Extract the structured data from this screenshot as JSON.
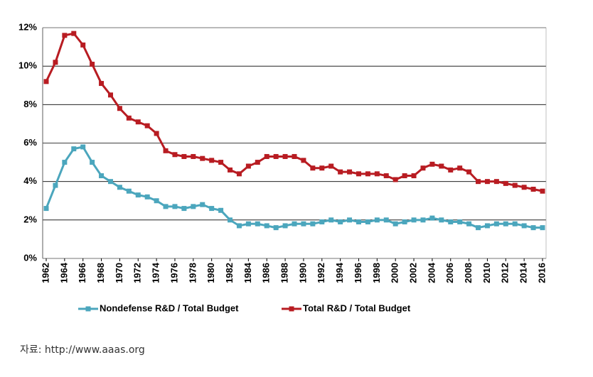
{
  "chart_data": {
    "type": "line",
    "source": "자료:  http://www.aaas.org",
    "x": [
      1962,
      1963,
      1964,
      1965,
      1966,
      1967,
      1968,
      1969,
      1970,
      1971,
      1972,
      1973,
      1974,
      1975,
      1976,
      1977,
      1978,
      1979,
      1980,
      1981,
      1982,
      1983,
      1984,
      1985,
      1986,
      1987,
      1988,
      1989,
      1990,
      1991,
      1992,
      1993,
      1994,
      1995,
      1996,
      1997,
      1998,
      1999,
      2000,
      2001,
      2002,
      2003,
      2004,
      2005,
      2006,
      2007,
      2008,
      2009,
      2010,
      2011,
      2012,
      2013,
      2014,
      2015,
      2016
    ],
    "series": [
      {
        "name": "Nondefense R&D / Total Budget",
        "color": "#4ba6bd",
        "values": [
          2.6,
          3.8,
          5.0,
          5.7,
          5.8,
          5.0,
          4.3,
          4.0,
          3.7,
          3.5,
          3.3,
          3.2,
          3.0,
          2.7,
          2.7,
          2.6,
          2.7,
          2.8,
          2.6,
          2.5,
          2.0,
          1.7,
          1.8,
          1.8,
          1.7,
          1.6,
          1.7,
          1.8,
          1.8,
          1.8,
          1.9,
          2.0,
          1.9,
          2.0,
          1.9,
          1.9,
          2.0,
          2.0,
          1.8,
          1.9,
          2.0,
          2.0,
          2.1,
          2.0,
          1.9,
          1.9,
          1.8,
          1.6,
          1.7,
          1.8,
          1.8,
          1.8,
          1.7,
          1.6,
          1.6
        ]
      },
      {
        "name": "Total R&D / Total Budget",
        "color": "#b81c22",
        "values": [
          9.2,
          10.2,
          11.6,
          11.7,
          11.1,
          10.1,
          9.1,
          8.5,
          7.8,
          7.3,
          7.1,
          6.9,
          6.5,
          5.6,
          5.4,
          5.3,
          5.3,
          5.2,
          5.1,
          5.0,
          4.6,
          4.4,
          4.8,
          5.0,
          5.3,
          5.3,
          5.3,
          5.3,
          5.1,
          4.7,
          4.7,
          4.8,
          4.5,
          4.5,
          4.4,
          4.4,
          4.4,
          4.3,
          4.1,
          4.3,
          4.3,
          4.7,
          4.9,
          4.8,
          4.6,
          4.7,
          4.5,
          4.0,
          4.0,
          4.0,
          3.9,
          3.8,
          3.7,
          3.6,
          3.5
        ]
      }
    ],
    "xlim": [
      1962,
      2016
    ],
    "xticks": [
      1962,
      1964,
      1966,
      1968,
      1970,
      1972,
      1974,
      1976,
      1978,
      1980,
      1982,
      1984,
      1986,
      1988,
      1990,
      1992,
      1994,
      1996,
      1998,
      2000,
      2002,
      2004,
      2006,
      2008,
      2010,
      2012,
      2014,
      2016
    ],
    "ylim": [
      0,
      12
    ],
    "yticks": [
      {
        "value": 0,
        "label": "0%"
      },
      {
        "value": 2,
        "label": "2%"
      },
      {
        "value": 4,
        "label": "4%"
      },
      {
        "value": 6,
        "label": "6%"
      },
      {
        "value": 8,
        "label": "8%"
      },
      {
        "value": 10,
        "label": "10%"
      },
      {
        "value": 12,
        "label": "12%"
      }
    ],
    "grid": true,
    "legend": "bottom"
  }
}
